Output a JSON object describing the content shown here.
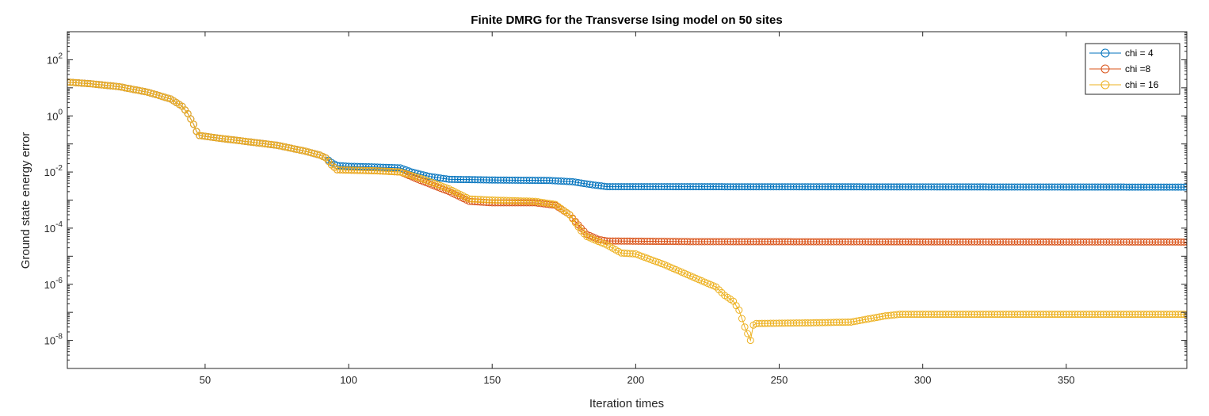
{
  "chart_data": {
    "type": "line",
    "title": "Finite DMRG for the Transverse Ising model on 50 sites",
    "xlabel": "Iteration times",
    "ylabel": "Ground state energy error",
    "xlim": [
      2,
      392
    ],
    "ylim_log10": [
      -9,
      3
    ],
    "yscale": "log",
    "x_ticks": [
      50,
      100,
      150,
      200,
      250,
      300,
      350
    ],
    "y_ticks": [
      {
        "base": "10",
        "exp": "2"
      },
      {
        "base": "10",
        "exp": "0"
      },
      {
        "base": "10",
        "exp": "-2"
      },
      {
        "base": "10",
        "exp": "-4"
      },
      {
        "base": "10",
        "exp": "-6"
      },
      {
        "base": "10",
        "exp": "-8"
      }
    ],
    "legend_position": "top-right",
    "marker": "circle",
    "grid": false,
    "series": [
      {
        "name": "chi = 4",
        "color": "#0072BD",
        "points": [
          [
            2,
            16
          ],
          [
            10,
            14
          ],
          [
            20,
            11
          ],
          [
            30,
            7
          ],
          [
            38,
            4
          ],
          [
            42,
            2.2
          ],
          [
            44,
            1.2
          ],
          [
            46,
            0.5
          ],
          [
            47,
            0.28
          ],
          [
            48,
            0.2
          ],
          [
            55,
            0.16
          ],
          [
            65,
            0.12
          ],
          [
            75,
            0.09
          ],
          [
            85,
            0.055
          ],
          [
            90,
            0.04
          ],
          [
            92,
            0.032
          ],
          [
            94,
            0.022
          ],
          [
            96,
            0.017
          ],
          [
            100,
            0.016
          ],
          [
            110,
            0.015
          ],
          [
            118,
            0.014
          ],
          [
            122,
            0.01
          ],
          [
            128,
            0.007
          ],
          [
            135,
            0.0055
          ],
          [
            150,
            0.0052
          ],
          [
            170,
            0.005
          ],
          [
            178,
            0.0045
          ],
          [
            185,
            0.0035
          ],
          [
            190,
            0.003
          ],
          [
            200,
            0.003
          ],
          [
            392,
            0.0029
          ]
        ]
      },
      {
        "name": "chi =8",
        "color": "#D95319",
        "points": [
          [
            2,
            16
          ],
          [
            10,
            14
          ],
          [
            20,
            11
          ],
          [
            30,
            7
          ],
          [
            38,
            4
          ],
          [
            42,
            2.2
          ],
          [
            44,
            1.2
          ],
          [
            46,
            0.5
          ],
          [
            47,
            0.28
          ],
          [
            48,
            0.2
          ],
          [
            55,
            0.16
          ],
          [
            65,
            0.12
          ],
          [
            75,
            0.09
          ],
          [
            85,
            0.055
          ],
          [
            90,
            0.04
          ],
          [
            92,
            0.032
          ],
          [
            94,
            0.018
          ],
          [
            96,
            0.012
          ],
          [
            110,
            0.011
          ],
          [
            118,
            0.01
          ],
          [
            125,
            0.005
          ],
          [
            135,
            0.002
          ],
          [
            142,
            0.0009
          ],
          [
            150,
            0.0008
          ],
          [
            165,
            0.0008
          ],
          [
            172,
            0.00065
          ],
          [
            177,
            0.0003
          ],
          [
            181,
            0.0001
          ],
          [
            183,
            6e-05
          ],
          [
            187,
            4e-05
          ],
          [
            190,
            3.5e-05
          ],
          [
            220,
            3.3e-05
          ],
          [
            392,
            3.2e-05
          ]
        ]
      },
      {
        "name": "chi = 16",
        "color": "#EDB120",
        "points": [
          [
            2,
            16
          ],
          [
            10,
            14
          ],
          [
            20,
            11
          ],
          [
            30,
            7
          ],
          [
            38,
            4
          ],
          [
            42,
            2.2
          ],
          [
            44,
            1.2
          ],
          [
            46,
            0.5
          ],
          [
            47,
            0.28
          ],
          [
            48,
            0.2
          ],
          [
            55,
            0.16
          ],
          [
            65,
            0.12
          ],
          [
            75,
            0.09
          ],
          [
            85,
            0.055
          ],
          [
            90,
            0.04
          ],
          [
            92,
            0.032
          ],
          [
            94,
            0.018
          ],
          [
            96,
            0.012
          ],
          [
            110,
            0.011
          ],
          [
            118,
            0.01
          ],
          [
            125,
            0.006
          ],
          [
            135,
            0.0025
          ],
          [
            142,
            0.0011
          ],
          [
            150,
            0.001
          ],
          [
            165,
            0.0009
          ],
          [
            172,
            0.0007
          ],
          [
            177,
            0.0003
          ],
          [
            181,
            8e-05
          ],
          [
            183,
            5e-05
          ],
          [
            190,
            2.5e-05
          ],
          [
            195,
            1.3e-05
          ],
          [
            200,
            1.2e-05
          ],
          [
            210,
            5e-06
          ],
          [
            220,
            1.8e-06
          ],
          [
            228,
            8e-07
          ],
          [
            231,
            4e-07
          ],
          [
            234,
            2.5e-07
          ],
          [
            236,
            1.2e-07
          ],
          [
            238,
            3e-08
          ],
          [
            240,
            1e-08
          ],
          [
            241,
            3.5e-08
          ],
          [
            242,
            4e-08
          ],
          [
            260,
            4.2e-08
          ],
          [
            275,
            4.5e-08
          ],
          [
            287,
            7.5e-08
          ],
          [
            292,
            8.5e-08
          ],
          [
            392,
            8.5e-08
          ]
        ]
      }
    ]
  }
}
